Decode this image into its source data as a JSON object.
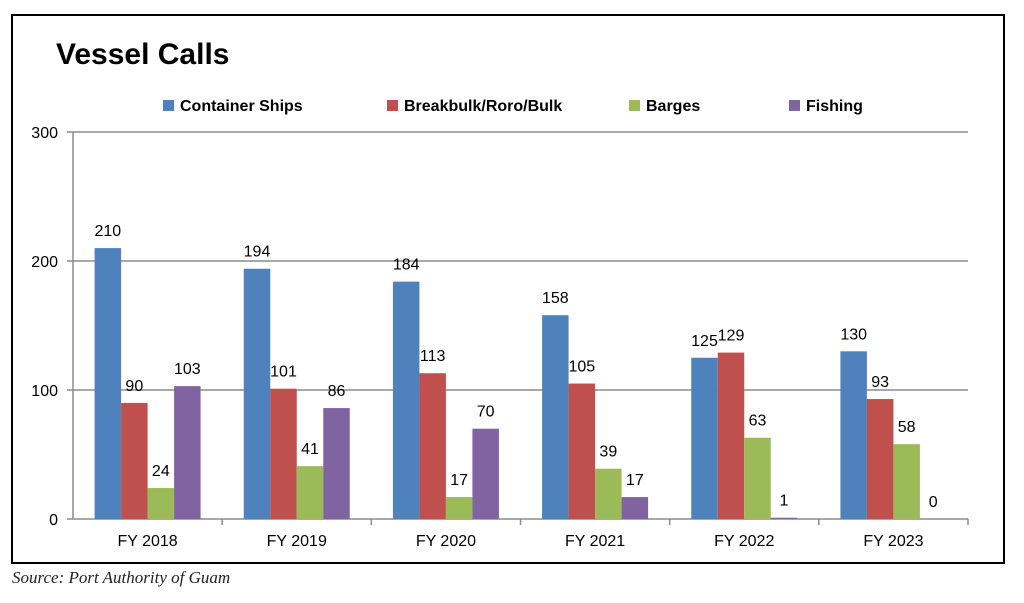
{
  "chart_data": {
    "type": "bar",
    "title": "Vessel Calls",
    "categories": [
      "FY 2018",
      "FY 2019",
      "FY 2020",
      "FY 2021",
      "FY 2022",
      "FY 2023"
    ],
    "series": [
      {
        "name": "Container Ships",
        "color": "#4F81BD",
        "values": [
          210,
          194,
          184,
          158,
          125,
          130
        ]
      },
      {
        "name": "Breakbulk/Roro/Bulk",
        "color": "#C0504D",
        "values": [
          90,
          101,
          113,
          105,
          129,
          93
        ]
      },
      {
        "name": "Barges",
        "color": "#9BBB59",
        "values": [
          24,
          41,
          17,
          39,
          63,
          58
        ]
      },
      {
        "name": "Fishing",
        "color": "#8064A2",
        "values": [
          103,
          86,
          70,
          17,
          1,
          0
        ]
      }
    ],
    "ylim": [
      0,
      300
    ],
    "yticks": [
      0,
      100,
      200,
      300
    ],
    "grid": true,
    "legend": "top",
    "xlabel": "",
    "ylabel": ""
  },
  "source": "Source: Port Authority of Guam"
}
